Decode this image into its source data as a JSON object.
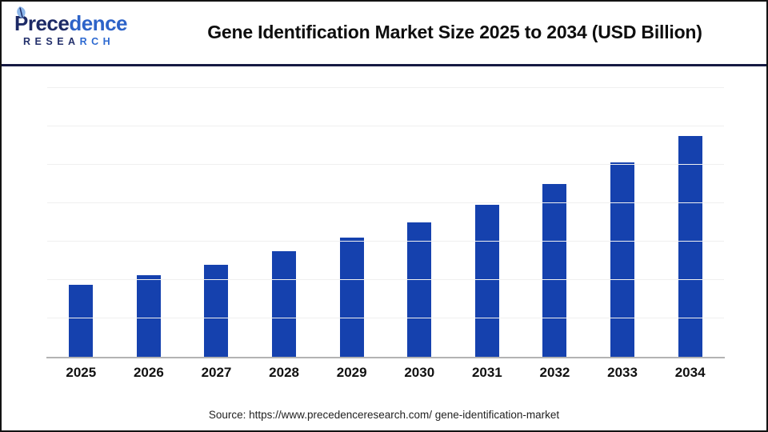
{
  "page": {
    "background": "#ffffff",
    "border_color": "#121212",
    "divider_color": "#161a43"
  },
  "header": {
    "logo": {
      "word_dark": "Prece",
      "word_light": "dence",
      "sub_dark": "RESEA",
      "sub_light": "RCH",
      "leaf_color": "#8db7ea"
    },
    "title": "Gene Identification Market Size 2025 to 2034 (USD Billion)"
  },
  "chart_data": {
    "type": "bar",
    "title": "Gene Identification Market Size 2025 to 2034 (USD Billion)",
    "categories": [
      "2025",
      "2026",
      "2027",
      "2028",
      "2029",
      "2030",
      "2031",
      "2032",
      "2033",
      "2034"
    ],
    "values": [
      1.87,
      2.12,
      2.39,
      2.74,
      3.1,
      3.5,
      3.96,
      4.49,
      5.07,
      5.75
    ],
    "value_note": "y-axis unlabeled in source image; values estimated in gridline units (1 unit = 1 gridline spacing); growth ~13% per year",
    "xlabel": "",
    "ylabel": "",
    "ylim": [
      0,
      7
    ],
    "gridline_count": 7,
    "grid": "horizontal only, very faint",
    "legend": "none",
    "bar_color": "#1541ae",
    "gridline_color": "#f0f0f0",
    "axis_line_color": "#b3b3b3",
    "label_color": "#111111"
  },
  "footer": {
    "source_text": "Source: https://www.precedenceresearch.com/ gene-identification-market"
  }
}
